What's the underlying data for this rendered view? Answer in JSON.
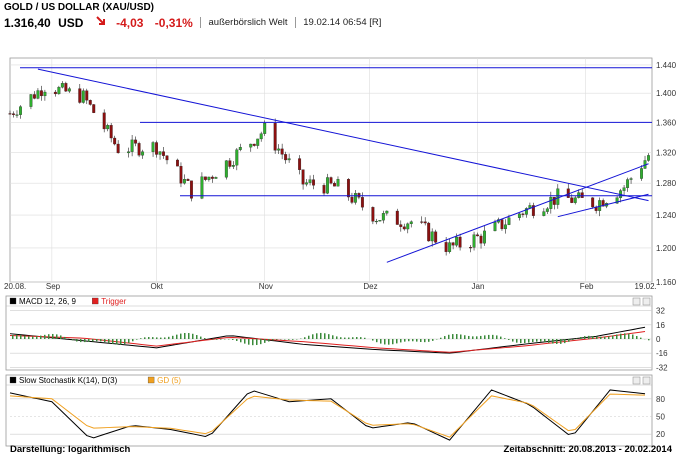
{
  "header": {
    "title": "GOLD / US DOLLAR (XAU/USD)",
    "price": "1.316,40",
    "currency": "USD",
    "change": "-4,03",
    "change_pct": "-0,31%",
    "market": "außerbörslich Welt",
    "datetime": "19.02.14 06:54 [R]",
    "colors": {
      "negative": "#d41a1a"
    }
  },
  "chart_data": [
    {
      "type": "candlestick",
      "title": "",
      "scale": "logarithmic",
      "y_ticks": [
        "1.160",
        "1.200",
        "1.240",
        "1.280",
        "1.320",
        "1.360",
        "1.400",
        "1.440"
      ],
      "y_tick_values": [
        1160,
        1200,
        1240,
        1280,
        1320,
        1360,
        1400,
        1440
      ],
      "ylim": [
        1160,
        1450
      ],
      "x_labels": [
        "20.08.",
        "Sep",
        "Okt",
        "Nov",
        "Dez",
        "Jan",
        "Feb",
        "19.02."
      ],
      "x": [
        "2013-08-20",
        "2013-08-30",
        "2013-09-10",
        "2013-09-20",
        "2013-10-01",
        "2013-10-11",
        "2013-10-22",
        "2013-11-01",
        "2013-11-12",
        "2013-11-22",
        "2013-12-03",
        "2013-12-13",
        "2013-12-24",
        "2014-01-03",
        "2014-01-14",
        "2014-01-24",
        "2014-02-04",
        "2014-02-12",
        "2014-02-19"
      ],
      "close": [
        1372,
        1410,
        1395,
        1325,
        1328,
        1270,
        1310,
        1350,
        1280,
        1275,
        1238,
        1232,
        1200,
        1215,
        1245,
        1262,
        1255,
        1275,
        1316
      ],
      "trendlines": [
        {
          "from": [
            "2013-08-28",
            1434
          ],
          "to": [
            "2014-02-19",
            1258
          ]
        },
        {
          "from": [
            "2013-12-06",
            1183
          ],
          "to": [
            "2014-02-19",
            1305
          ]
        },
        {
          "from": [
            "2014-01-24",
            1238
          ],
          "to": [
            "2014-02-19",
            1266
          ]
        }
      ],
      "horizontal_lines": [
        1436,
        1360,
        1264
      ],
      "colors": {
        "up": "#2fae2f",
        "down": "#8c1010",
        "lines": "#1414d6"
      },
      "grid": true
    },
    {
      "type": "line",
      "title": "MACD 12, 26, 9",
      "legend": [
        "MACD 12, 26, 9",
        "Trigger"
      ],
      "y_ticks": [
        "32",
        "16",
        "0",
        "-16",
        "-32"
      ],
      "y_tick_values": [
        32,
        16,
        0,
        -16,
        -32
      ],
      "ylim": [
        -35,
        35
      ],
      "x": [
        "2013-08-20",
        "2013-09-10",
        "2013-10-01",
        "2013-10-22",
        "2013-11-12",
        "2013-12-03",
        "2013-12-24",
        "2014-01-14",
        "2014-02-04",
        "2014-02-19"
      ],
      "series": [
        {
          "name": "MACD 12, 26, 9",
          "values": [
            6,
            -2,
            -10,
            4,
            -6,
            -12,
            -16,
            -6,
            3,
            14
          ],
          "color": "#000000"
        },
        {
          "name": "Trigger",
          "values": [
            4,
            1,
            -8,
            2,
            -3,
            -10,
            -15,
            -8,
            1,
            9
          ],
          "color": "#e02020"
        }
      ],
      "grid": true
    },
    {
      "type": "line",
      "title": "Slow Stochastik K(14), D(3)",
      "legend": [
        "Slow Stochastik K(14), D(3)",
        "GD (5)"
      ],
      "y_ticks": [
        "80",
        "50",
        "20"
      ],
      "y_tick_values": [
        80,
        50,
        20
      ],
      "ylim": [
        0,
        100
      ],
      "x": [
        "2013-08-20",
        "2013-09-01",
        "2013-09-12",
        "2013-09-24",
        "2013-10-05",
        "2013-10-16",
        "2013-10-28",
        "2013-11-08",
        "2013-11-20",
        "2013-12-01",
        "2013-12-13",
        "2013-12-24",
        "2014-01-05",
        "2014-01-16",
        "2014-01-28",
        "2014-02-08",
        "2014-02-19"
      ],
      "series": [
        {
          "name": "Slow Stochastik K(14), D(3)",
          "values": [
            90,
            75,
            12,
            35,
            28,
            15,
            95,
            75,
            80,
            30,
            40,
            10,
            95,
            70,
            15,
            95,
            88
          ],
          "color": "#000000"
        },
        {
          "name": "GD (5)",
          "values": [
            85,
            80,
            30,
            33,
            30,
            20,
            85,
            78,
            76,
            35,
            38,
            15,
            85,
            72,
            22,
            88,
            86
          ],
          "color": "#f0a020"
        }
      ],
      "grid": true
    }
  ],
  "footer": {
    "display": "Darstellung: logarithmisch",
    "period": "Zeitabschnitt: 20.08.2013 - 20.02.2014"
  }
}
